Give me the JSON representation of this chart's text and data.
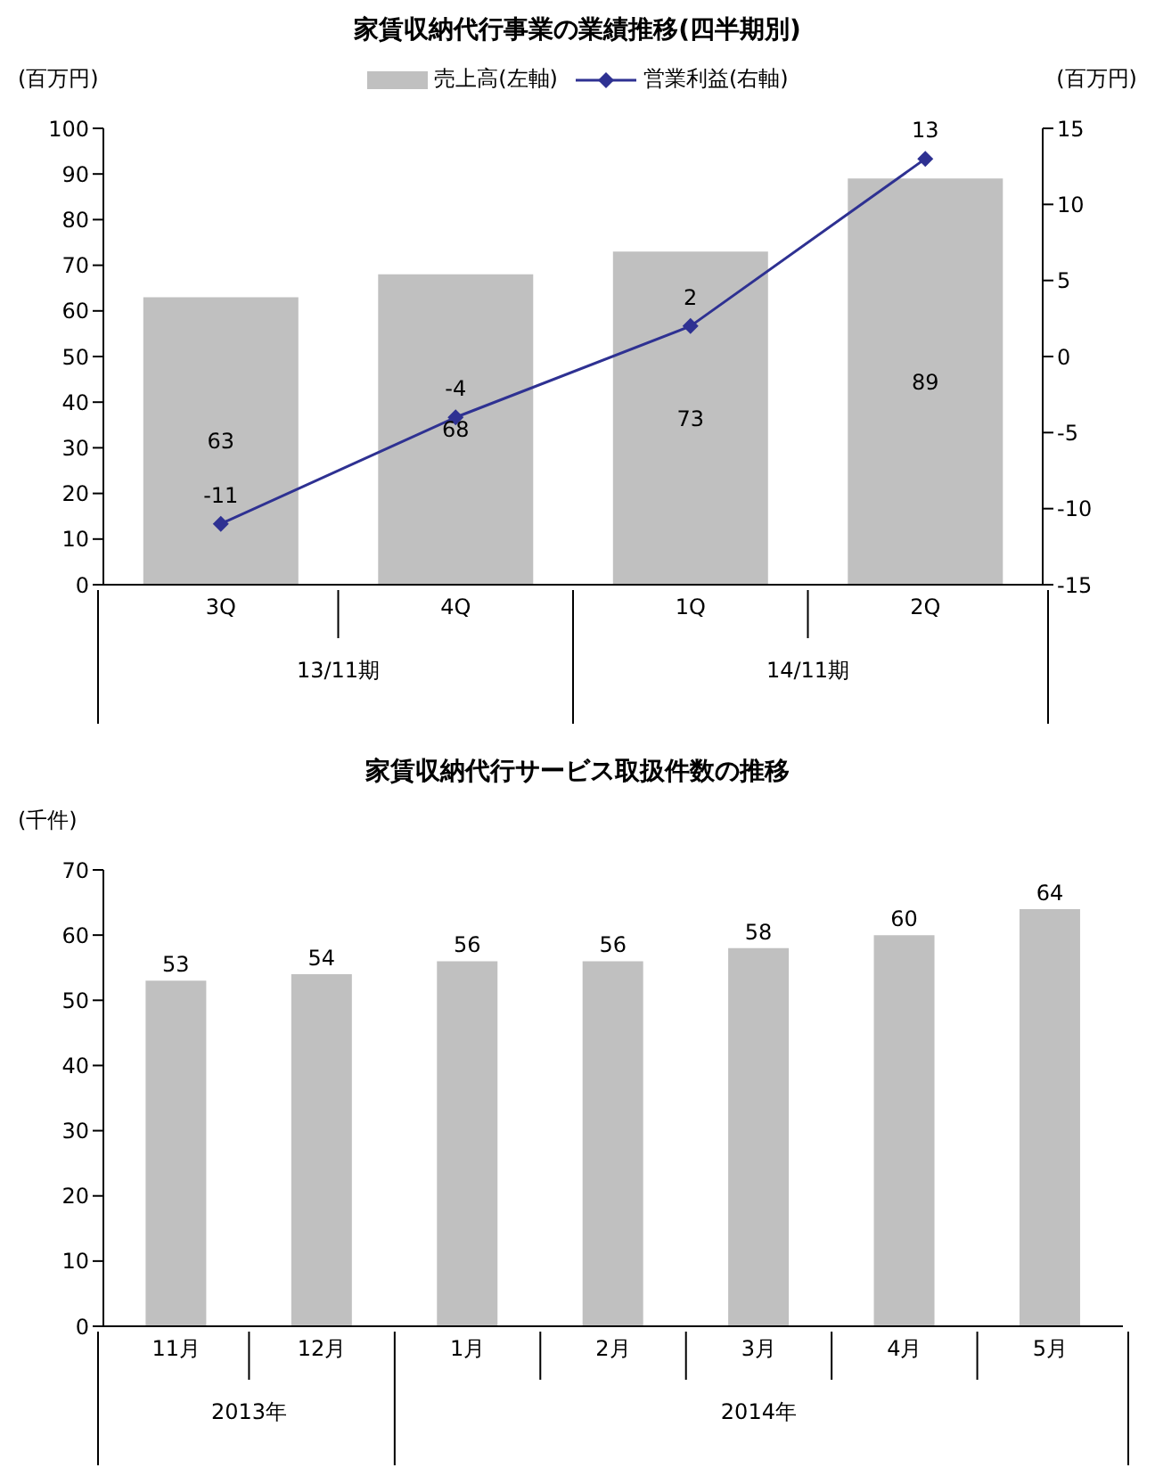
{
  "chart_data": [
    {
      "type": "bar",
      "title": "家賃収納代行事業の業績推移(四半期別)",
      "ylabel": "(百万円)",
      "y2label": "(百万円)",
      "categories": [
        "3Q",
        "4Q",
        "1Q",
        "2Q"
      ],
      "series": [
        {
          "name": "売上高(左軸)",
          "color": "#c0c0c0",
          "values": [
            63,
            68,
            73,
            89
          ]
        },
        {
          "name": "営業利益(右軸)",
          "type": "line",
          "axis": "y2",
          "color": "#2e3192",
          "values": [
            -11,
            -4,
            2,
            13
          ]
        }
      ],
      "ylim": [
        0,
        100
      ],
      "yticks": [
        0,
        10,
        20,
        30,
        40,
        50,
        60,
        70,
        80,
        90,
        100
      ],
      "y2lim": [
        -15,
        15
      ],
      "y2ticks": [
        -15,
        -10,
        -5,
        0,
        5,
        10,
        15
      ],
      "legend": "top",
      "marker": "diamond",
      "data_labels": true,
      "annotations": [
        "13/11期",
        "14/11期"
      ]
    },
    {
      "type": "bar",
      "title": "家賃収納代行サービス取扱件数の推移",
      "ylabel": "(千件)",
      "categories": [
        "11月",
        "12月",
        "1月",
        "2月",
        "3月",
        "4月",
        "5月"
      ],
      "values": [
        53,
        54,
        56,
        56,
        58,
        60,
        64
      ],
      "color": "#c0c0c0",
      "ylim": [
        0,
        70
      ],
      "yticks": [
        0,
        10,
        20,
        30,
        40,
        50,
        60,
        70
      ],
      "data_labels": true,
      "annotations": [
        "2013年",
        "2014年"
      ]
    }
  ]
}
